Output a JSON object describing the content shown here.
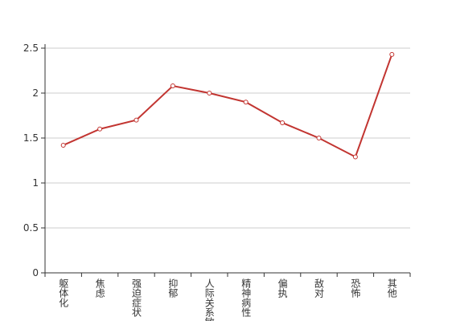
{
  "chart_data": {
    "type": "line",
    "categories": [
      "躯体化",
      "焦虑",
      "强迫症状",
      "抑郁",
      "人际关系敏感",
      "精神病性",
      "偏执",
      "敌对",
      "恐怖",
      "其他"
    ],
    "values": [
      1.42,
      1.6,
      1.7,
      2.08,
      2.0,
      1.9,
      1.67,
      1.5,
      1.29,
      2.43
    ],
    "color": "#c23531",
    "ylim": [
      0,
      2.5
    ],
    "yticks": [
      0,
      0.5,
      1,
      1.5,
      2,
      2.5
    ],
    "grid": true
  }
}
